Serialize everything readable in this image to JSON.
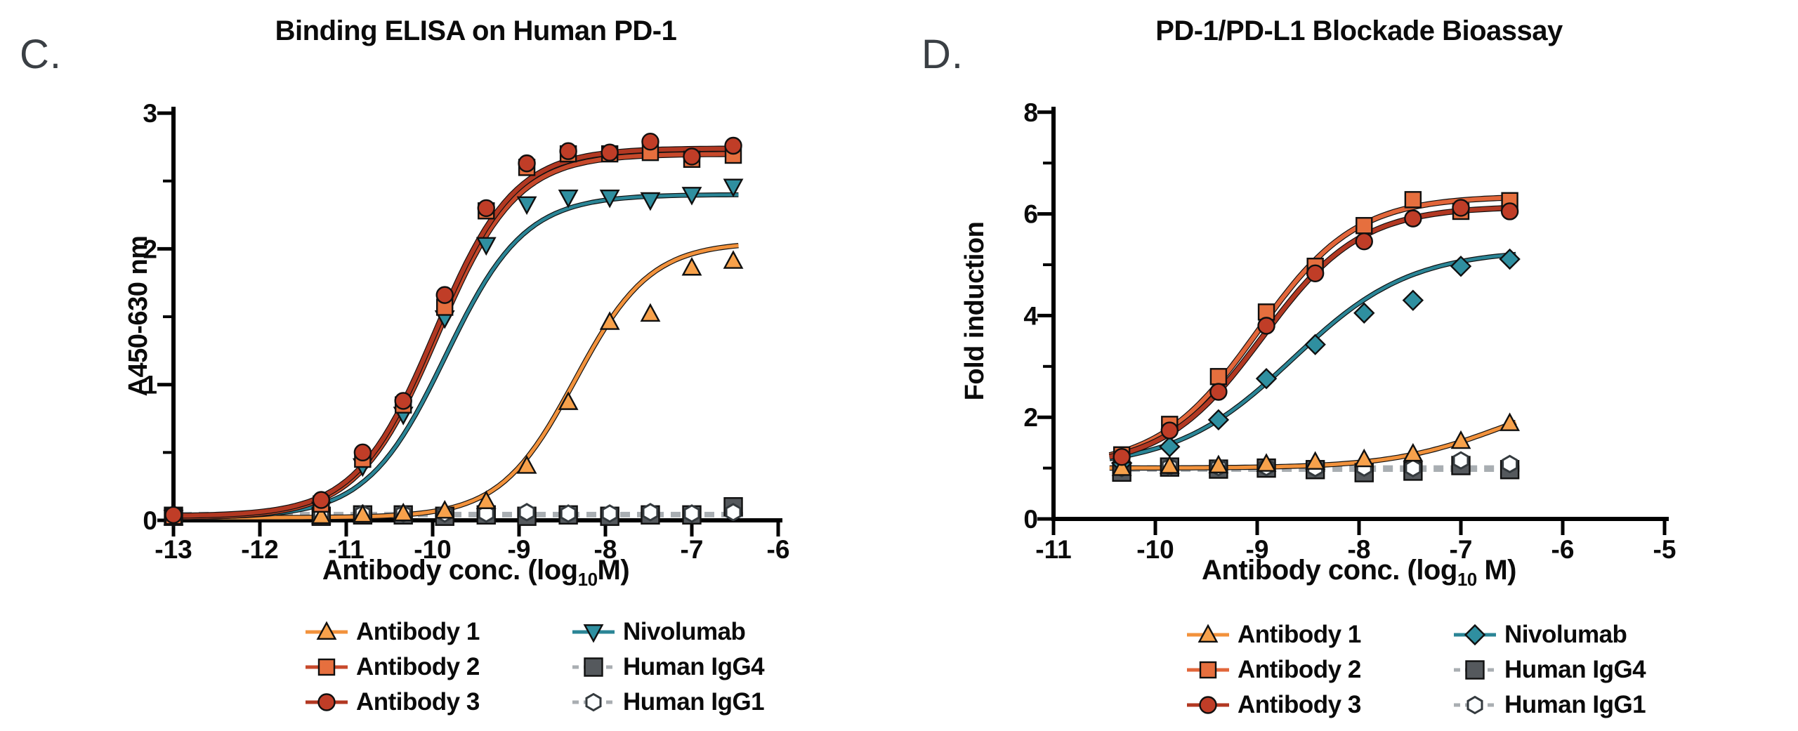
{
  "figure": {
    "background": "#ffffff",
    "text_color": "#0b0b0b",
    "panel_letter_color": "#3a3f44"
  },
  "chart_data": [
    {
      "type": "scatter",
      "panel_letter": "C.",
      "title": "Binding ELISA on Human PD-1",
      "ylabel": "A450-630 nm",
      "xlabel_parts": [
        "Antibody conc. (log",
        "10",
        "M)"
      ],
      "x_axis": {
        "min": -13,
        "max": -6,
        "ticks": [
          -13,
          -12,
          -11,
          -10,
          -9,
          -8,
          -7,
          -6
        ]
      },
      "y_axis": {
        "min": 0,
        "max": 3,
        "ticks": [
          0,
          1,
          2,
          3
        ],
        "minor_ticks": [
          0.5,
          1.5,
          2.5
        ]
      },
      "legend_position": "bottom",
      "grid": false,
      "x": [
        -13.0,
        -11.29,
        -10.81,
        -10.34,
        -9.86,
        -9.38,
        -8.91,
        -8.43,
        -7.95,
        -7.48,
        -7.0,
        -6.52
      ],
      "series": [
        {
          "name": "Antibody 1",
          "marker": "triangle-up",
          "fill": "#F7A14B",
          "line": "#F2923C",
          "style": "solid",
          "values": [
            0.02,
            0.03,
            0.04,
            0.05,
            0.07,
            0.14,
            0.4,
            0.87,
            1.46,
            1.52,
            1.86,
            1.91
          ],
          "fit": {
            "bottom": 0.02,
            "top": 2.05,
            "logec50": -8.35,
            "hill": 1.0
          }
        },
        {
          "name": "Antibody 2",
          "marker": "square",
          "fill": "#E66F3E",
          "line": "#C7492B",
          "style": "solid",
          "values": [
            0.03,
            0.12,
            0.45,
            0.85,
            1.57,
            2.28,
            2.6,
            2.7,
            2.7,
            2.71,
            2.66,
            2.69
          ],
          "fit": {
            "bottom": 0.02,
            "top": 2.7,
            "logec50": -9.95,
            "hill": 0.95
          }
        },
        {
          "name": "Antibody 3",
          "marker": "circle",
          "fill": "#C03D27",
          "line": "#B23822",
          "style": "solid",
          "values": [
            0.04,
            0.15,
            0.5,
            0.88,
            1.66,
            2.3,
            2.63,
            2.72,
            2.71,
            2.79,
            2.68,
            2.76
          ],
          "fit": {
            "bottom": 0.03,
            "top": 2.74,
            "logec50": -9.97,
            "hill": 0.95
          }
        },
        {
          "name": "Nivolumab",
          "marker": "triangle-down",
          "fill": "#2F8FA0",
          "line": "#2A8596",
          "style": "solid",
          "values": [
            0.02,
            0.08,
            0.4,
            0.78,
            1.49,
            2.03,
            2.33,
            2.38,
            2.38,
            2.36,
            2.4,
            2.46
          ],
          "fit": {
            "bottom": 0.02,
            "top": 2.4,
            "logec50": -9.85,
            "hill": 0.95
          }
        },
        {
          "name": "Human IgG4",
          "marker": "square-large",
          "fill": "#55595D",
          "line": "#A9AEB2",
          "style": "dashed",
          "values": [
            0.03,
            0.03,
            0.04,
            0.04,
            0.03,
            0.04,
            0.03,
            0.04,
            0.03,
            0.04,
            0.04,
            0.1
          ],
          "flat": 0.035
        },
        {
          "name": "Human IgG1",
          "marker": "hexagon",
          "fill": "#FCFEFF",
          "line": "#A9AEB2",
          "style": "dashed",
          "values": [
            0.04,
            0.04,
            0.05,
            0.05,
            0.05,
            0.05,
            0.06,
            0.05,
            0.05,
            0.06,
            0.05,
            0.06
          ],
          "flat": 0.05
        }
      ]
    },
    {
      "type": "scatter",
      "panel_letter": "D.",
      "title": "PD-1/PD-L1 Blockade Bioassay",
      "ylabel": "Fold induction",
      "xlabel_parts": [
        "Antibody conc. (log",
        "10",
        " M)"
      ],
      "x_axis": {
        "min": -11,
        "max": -5,
        "ticks": [
          -11,
          -10,
          -9,
          -8,
          -7,
          -6,
          -5
        ]
      },
      "y_axis": {
        "min": 0,
        "max": 8,
        "ticks": [
          0,
          2,
          4,
          6,
          8
        ],
        "minor_ticks": [
          1,
          3,
          5,
          7
        ]
      },
      "legend_position": "bottom",
      "grid": false,
      "x": [
        -10.33,
        -9.86,
        -9.38,
        -8.91,
        -8.43,
        -7.95,
        -7.47,
        -7.0,
        -6.52
      ],
      "series": [
        {
          "name": "Antibody 1",
          "marker": "triangle-up",
          "fill": "#F7A14B",
          "line": "#F2923C",
          "style": "solid",
          "values": [
            1.0,
            1.04,
            1.05,
            1.08,
            1.12,
            1.17,
            1.28,
            1.53,
            1.88
          ],
          "fit": {
            "bottom": 1.0,
            "top": 2.6,
            "logec50": -6.6,
            "hill": 0.8
          }
        },
        {
          "name": "Antibody 2",
          "marker": "square",
          "fill": "#E66F3E",
          "line": "#E2663A",
          "style": "solid",
          "values": [
            1.26,
            1.86,
            2.8,
            4.07,
            4.97,
            5.77,
            6.28,
            6.05,
            6.26
          ],
          "fit": {
            "bottom": 1.0,
            "top": 6.35,
            "logec50": -9.0,
            "hill": 0.9
          }
        },
        {
          "name": "Antibody 3",
          "marker": "circle",
          "fill": "#C03D27",
          "line": "#B23822",
          "style": "solid",
          "values": [
            1.22,
            1.74,
            2.5,
            3.8,
            4.83,
            5.46,
            5.91,
            6.12,
            6.05
          ],
          "fit": {
            "bottom": 1.0,
            "top": 6.15,
            "logec50": -8.95,
            "hill": 0.9
          }
        },
        {
          "name": "Nivolumab",
          "marker": "diamond",
          "fill": "#2F8FA0",
          "line": "#2A8596",
          "style": "solid",
          "values": [
            1.1,
            1.42,
            1.95,
            2.76,
            3.43,
            4.05,
            4.3,
            4.97,
            5.11
          ],
          "fit": {
            "bottom": 1.0,
            "top": 5.3,
            "logec50": -8.65,
            "hill": 0.75
          }
        },
        {
          "name": "Human IgG4",
          "marker": "square-large",
          "fill": "#55595D",
          "line": "#A9AEB2",
          "style": "dashed",
          "values": [
            0.92,
            1.02,
            0.98,
            1.0,
            0.97,
            0.91,
            0.94,
            1.05,
            0.97
          ],
          "flat": 0.96
        },
        {
          "name": "Human IgG1",
          "marker": "hexagon",
          "fill": "#FCFEFF",
          "line": "#A9AEB2",
          "style": "dashed",
          "values": [
            1.0,
            1.03,
            1.02,
            1.02,
            1.0,
            1.01,
            1.0,
            1.15,
            1.08
          ],
          "flat": 1.02
        }
      ]
    }
  ]
}
